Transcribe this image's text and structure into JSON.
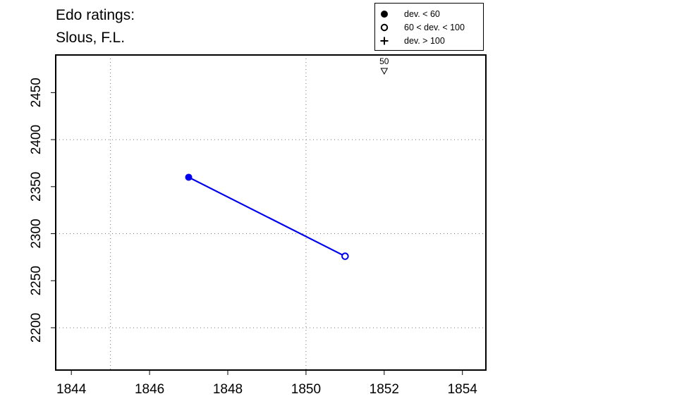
{
  "chart_data": {
    "type": "line",
    "title": [
      "Edo ratings:",
      "Slous, F.L."
    ],
    "xlim": [
      1843.6,
      1854.6
    ],
    "ylim": [
      2155,
      2490
    ],
    "x_ticks": [
      1844,
      1846,
      1848,
      1850,
      1852,
      1854
    ],
    "y_ticks": [
      2200,
      2250,
      2300,
      2350,
      2400,
      2450
    ],
    "x_grid": [
      1845,
      1850
    ],
    "y_grid": [
      2200,
      2300,
      2400
    ],
    "grid": true,
    "series": [
      {
        "color": "#0000ee",
        "points": [
          {
            "x": 1847,
            "y": 2360,
            "marker": "filled-circle"
          },
          {
            "x": 1851,
            "y": 2276,
            "marker": "open-circle"
          }
        ]
      }
    ],
    "annotations": [
      {
        "x": 1852,
        "text": "50",
        "marker": "down-triangle",
        "position": "top"
      }
    ],
    "legend": {
      "position": "top-right",
      "entries": [
        {
          "symbol": "filled-circle",
          "label": "dev. < 60"
        },
        {
          "symbol": "open-circle",
          "label": "60 < dev. < 100"
        },
        {
          "symbol": "plus",
          "label": "dev. > 100"
        }
      ]
    }
  }
}
